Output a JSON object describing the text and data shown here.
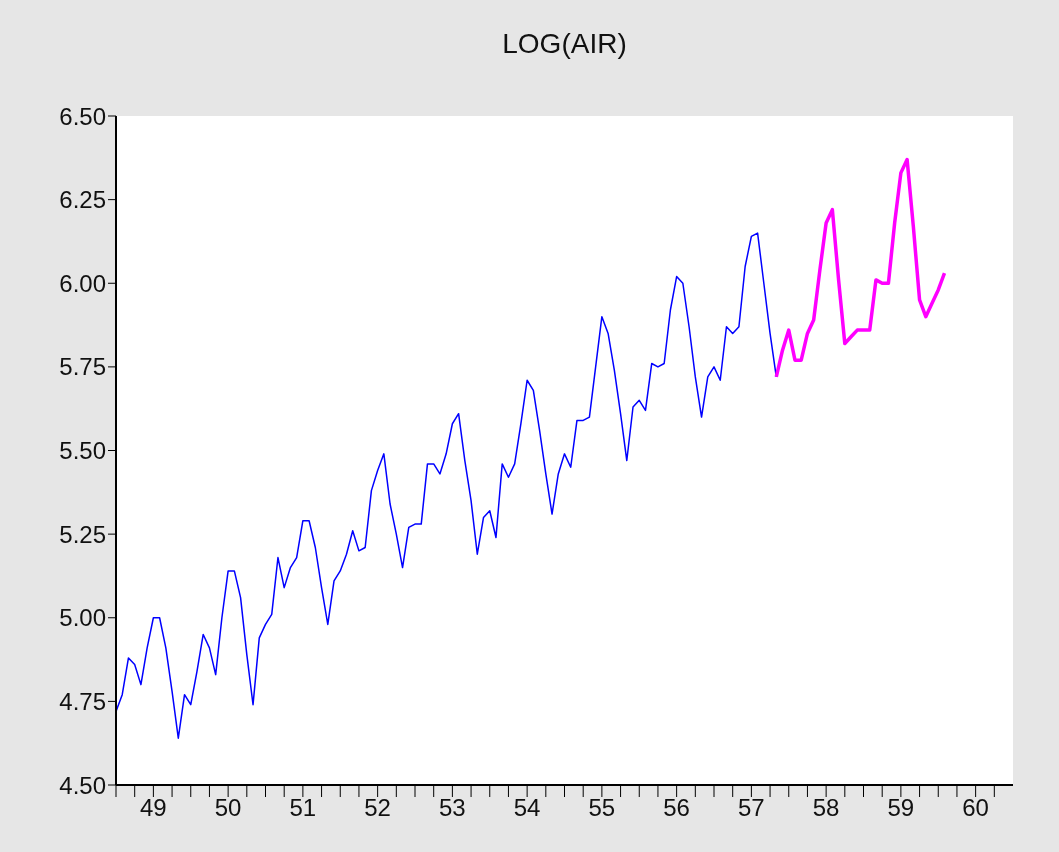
{
  "chart_data": {
    "type": "line",
    "title": "LOG(AIR)",
    "x": [
      "1949-01",
      "1949-02",
      "1949-03",
      "1949-04",
      "1949-05",
      "1949-06",
      "1949-07",
      "1949-08",
      "1949-09",
      "1949-10",
      "1949-11",
      "1949-12",
      "1950-01",
      "1950-02",
      "1950-03",
      "1950-04",
      "1950-05",
      "1950-06",
      "1950-07",
      "1950-08",
      "1950-09",
      "1950-10",
      "1950-11",
      "1950-12",
      "1951-01",
      "1951-02",
      "1951-03",
      "1951-04",
      "1951-05",
      "1951-06",
      "1951-07",
      "1951-08",
      "1951-09",
      "1951-10",
      "1951-11",
      "1951-12",
      "1952-01",
      "1952-02",
      "1952-03",
      "1952-04",
      "1952-05",
      "1952-06",
      "1952-07",
      "1952-08",
      "1952-09",
      "1952-10",
      "1952-11",
      "1952-12",
      "1953-01",
      "1953-02",
      "1953-03",
      "1953-04",
      "1953-05",
      "1953-06",
      "1953-07",
      "1953-08",
      "1953-09",
      "1953-10",
      "1953-11",
      "1953-12",
      "1954-01",
      "1954-02",
      "1954-03",
      "1954-04",
      "1954-05",
      "1954-06",
      "1954-07",
      "1954-08",
      "1954-09",
      "1954-10",
      "1954-11",
      "1954-12",
      "1955-01",
      "1955-02",
      "1955-03",
      "1955-04",
      "1955-05",
      "1955-06",
      "1955-07",
      "1955-08",
      "1955-09",
      "1955-10",
      "1955-11",
      "1955-12",
      "1956-01",
      "1956-02",
      "1956-03",
      "1956-04",
      "1956-05",
      "1956-06",
      "1956-07",
      "1956-08",
      "1956-09",
      "1956-10",
      "1956-11",
      "1956-12",
      "1957-01",
      "1957-02",
      "1957-03",
      "1957-04",
      "1957-05",
      "1957-06",
      "1957-07",
      "1957-08",
      "1957-09",
      "1957-10",
      "1957-11",
      "1957-12",
      "1958-01",
      "1958-02",
      "1958-03",
      "1958-04",
      "1958-05",
      "1958-06",
      "1958-07",
      "1958-08",
      "1958-09",
      "1958-10",
      "1958-11",
      "1958-12",
      "1959-01",
      "1959-02",
      "1959-03",
      "1959-04",
      "1959-05",
      "1959-06",
      "1959-07",
      "1959-08",
      "1959-09",
      "1959-10",
      "1959-11",
      "1959-12",
      "1960-01",
      "1960-02"
    ],
    "series": [
      {
        "color": "#0000ff",
        "values": [
          4.72,
          4.77,
          4.88,
          4.86,
          4.8,
          4.91,
          5.0,
          5.0,
          4.91,
          4.78,
          4.64,
          4.77,
          4.74,
          4.84,
          4.95,
          4.91,
          4.83,
          5.0,
          5.14,
          5.14,
          5.06,
          4.89,
          4.74,
          4.94,
          4.98,
          5.01,
          5.18,
          5.09,
          5.15,
          5.18,
          5.29,
          5.29,
          5.21,
          5.09,
          4.98,
          5.11,
          5.14,
          5.19,
          5.26,
          5.2,
          5.21,
          5.38,
          5.44,
          5.49,
          5.34,
          5.25,
          5.15,
          5.27,
          5.28,
          5.28,
          5.46,
          5.46,
          5.43,
          5.49,
          5.58,
          5.61,
          5.47,
          5.35,
          5.19,
          5.3,
          5.32,
          5.24,
          5.46,
          5.42,
          5.46,
          5.58,
          5.71,
          5.68,
          5.56,
          5.43,
          5.31,
          5.43,
          5.49,
          5.45,
          5.59,
          5.59,
          5.6,
          5.75,
          5.9,
          5.85,
          5.74,
          5.61,
          5.47,
          5.63,
          5.65,
          5.62,
          5.76,
          5.75,
          5.76,
          5.92,
          6.02,
          6.0,
          5.87,
          5.72,
          5.6,
          5.72,
          5.75,
          5.71,
          5.87,
          5.85,
          5.87,
          6.05,
          6.14,
          6.15,
          6.0,
          5.85,
          5.72,
          null,
          null,
          null,
          null,
          null,
          null,
          null,
          null,
          null,
          null,
          null,
          null,
          null,
          null,
          null,
          null,
          null,
          null,
          null,
          null,
          null,
          null,
          null,
          null,
          null,
          null,
          null
        ]
      },
      {
        "color": "#ff00ff",
        "values": [
          null,
          null,
          null,
          null,
          null,
          null,
          null,
          null,
          null,
          null,
          null,
          null,
          null,
          null,
          null,
          null,
          null,
          null,
          null,
          null,
          null,
          null,
          null,
          null,
          null,
          null,
          null,
          null,
          null,
          null,
          null,
          null,
          null,
          null,
          null,
          null,
          null,
          null,
          null,
          null,
          null,
          null,
          null,
          null,
          null,
          null,
          null,
          null,
          null,
          null,
          null,
          null,
          null,
          null,
          null,
          null,
          null,
          null,
          null,
          null,
          null,
          null,
          null,
          null,
          null,
          null,
          null,
          null,
          null,
          null,
          null,
          null,
          null,
          null,
          null,
          null,
          null,
          null,
          null,
          null,
          null,
          null,
          null,
          null,
          null,
          null,
          null,
          null,
          null,
          null,
          null,
          null,
          null,
          null,
          null,
          null,
          null,
          null,
          null,
          null,
          null,
          null,
          null,
          null,
          null,
          null,
          5.72,
          5.8,
          5.86,
          5.77,
          5.77,
          5.85,
          5.89,
          6.04,
          6.18,
          6.22,
          6.01,
          5.82,
          5.84,
          5.86,
          5.86,
          5.86,
          6.01,
          6.0,
          6.0,
          6.18,
          6.33,
          6.37,
          6.17,
          5.95,
          5.9,
          5.94,
          5.98,
          6.03
        ]
      }
    ],
    "xlim": [
      "1949-01",
      "1961-01"
    ],
    "xticks": [
      {
        "value": "1949-01",
        "label": null
      },
      {
        "value": "1949-04",
        "label": null
      },
      {
        "value": "1949-07",
        "label": "49"
      },
      {
        "value": "1949-10",
        "label": null
      },
      {
        "value": "1950-01",
        "label": null
      },
      {
        "value": "1950-04",
        "label": null
      },
      {
        "value": "1950-07",
        "label": "50"
      },
      {
        "value": "1950-10",
        "label": null
      },
      {
        "value": "1951-01",
        "label": null
      },
      {
        "value": "1951-04",
        "label": null
      },
      {
        "value": "1951-07",
        "label": "51"
      },
      {
        "value": "1951-10",
        "label": null
      },
      {
        "value": "1952-01",
        "label": null
      },
      {
        "value": "1952-04",
        "label": null
      },
      {
        "value": "1952-07",
        "label": "52"
      },
      {
        "value": "1952-10",
        "label": null
      },
      {
        "value": "1953-01",
        "label": null
      },
      {
        "value": "1953-04",
        "label": null
      },
      {
        "value": "1953-07",
        "label": "53"
      },
      {
        "value": "1953-10",
        "label": null
      },
      {
        "value": "1954-01",
        "label": null
      },
      {
        "value": "1954-04",
        "label": null
      },
      {
        "value": "1954-07",
        "label": "54"
      },
      {
        "value": "1954-10",
        "label": null
      },
      {
        "value": "1955-01",
        "label": null
      },
      {
        "value": "1955-04",
        "label": null
      },
      {
        "value": "1955-07",
        "label": "55"
      },
      {
        "value": "1955-10",
        "label": null
      },
      {
        "value": "1956-01",
        "label": null
      },
      {
        "value": "1956-04",
        "label": null
      },
      {
        "value": "1956-07",
        "label": "56"
      },
      {
        "value": "1956-10",
        "label": null
      },
      {
        "value": "1957-01",
        "label": null
      },
      {
        "value": "1957-04",
        "label": null
      },
      {
        "value": "1957-07",
        "label": "57"
      },
      {
        "value": "1957-10",
        "label": null
      },
      {
        "value": "1958-01",
        "label": null
      },
      {
        "value": "1958-04",
        "label": null
      },
      {
        "value": "1958-07",
        "label": "58"
      },
      {
        "value": "1958-10",
        "label": null
      },
      {
        "value": "1959-01",
        "label": null
      },
      {
        "value": "1959-04",
        "label": null
      },
      {
        "value": "1959-07",
        "label": "59"
      },
      {
        "value": "1959-10",
        "label": null
      },
      {
        "value": "1960-01",
        "label": null
      },
      {
        "value": "1960-04",
        "label": null
      },
      {
        "value": "1960-07",
        "label": "60"
      },
      {
        "value": "1960-10",
        "label": null
      }
    ],
    "ylim": [
      4.5,
      6.5
    ],
    "yticks": [
      {
        "value": 4.5,
        "label": "4.50"
      },
      {
        "value": 4.75,
        "label": "4.75"
      },
      {
        "value": 5.0,
        "label": "5.00"
      },
      {
        "value": 5.25,
        "label": "5.25"
      },
      {
        "value": 5.5,
        "label": "5.50"
      },
      {
        "value": 5.75,
        "label": "5.75"
      },
      {
        "value": 6.0,
        "label": "6.00"
      },
      {
        "value": 6.25,
        "label": "6.25"
      },
      {
        "value": 6.5,
        "label": "6.50"
      }
    ],
    "grid": false,
    "legend": false,
    "marker": "none",
    "line_style": "solid"
  }
}
